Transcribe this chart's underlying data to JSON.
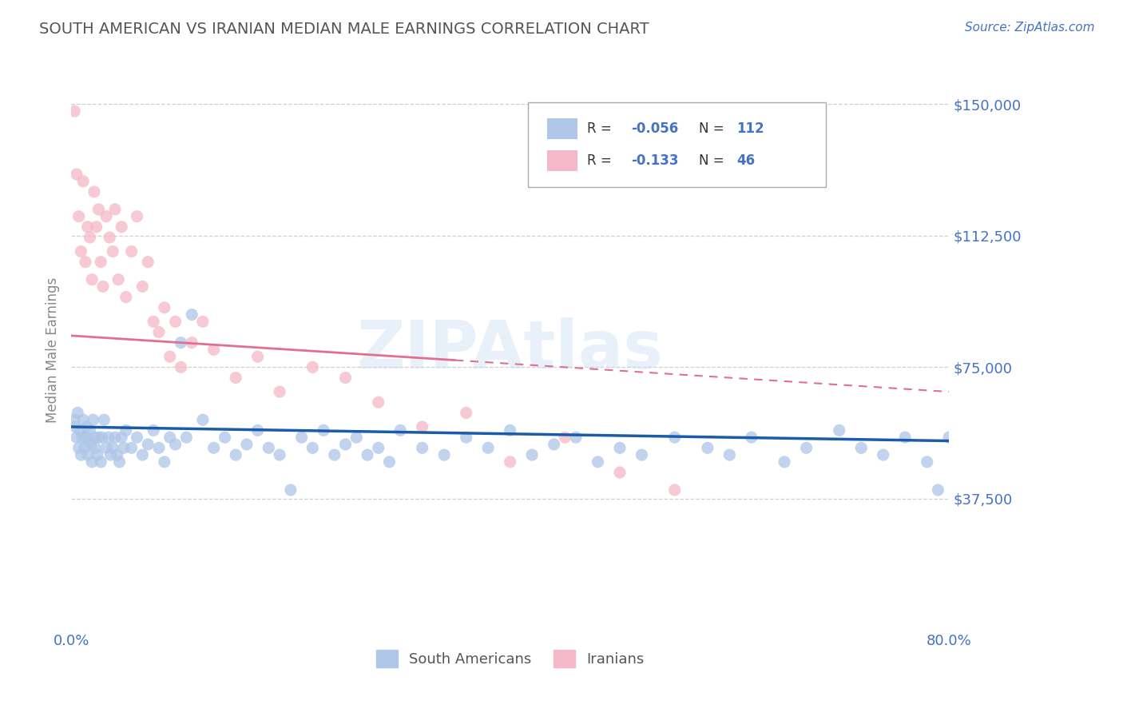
{
  "title": "SOUTH AMERICAN VS IRANIAN MEDIAN MALE EARNINGS CORRELATION CHART",
  "source_text": "Source: ZipAtlas.com",
  "ylabel": "Median Male Earnings",
  "xlim": [
    0.0,
    0.8
  ],
  "ylim": [
    0,
    160000
  ],
  "yticks": [
    37500,
    75000,
    112500,
    150000
  ],
  "ytick_labels": [
    "$37,500",
    "$75,000",
    "$112,500",
    "$150,000"
  ],
  "title_color": "#555555",
  "title_fontsize": 14,
  "source_color": "#4472c4",
  "axis_label_color": "#888888",
  "tick_label_color": "#4472c4",
  "background_color": "#ffffff",
  "grid_color": "#d0d0d0",
  "south_american_color": "#aec6e8",
  "iranian_color": "#f5b8c8",
  "trend_sa_color": "#1a5ca8",
  "trend_ir_color": "#e07090",
  "sa_trend_x0": 0.0,
  "sa_trend_x1": 0.8,
  "sa_trend_y0": 58000,
  "sa_trend_y1": 54000,
  "ir_trend_x0": 0.0,
  "ir_trend_x1": 0.8,
  "ir_trend_y0": 84000,
  "ir_trend_y1": 68000,
  "sa_x": [
    0.003,
    0.004,
    0.005,
    0.006,
    0.007,
    0.008,
    0.009,
    0.01,
    0.011,
    0.012,
    0.013,
    0.014,
    0.015,
    0.016,
    0.017,
    0.018,
    0.019,
    0.02,
    0.021,
    0.022,
    0.024,
    0.025,
    0.027,
    0.028,
    0.03,
    0.032,
    0.034,
    0.036,
    0.038,
    0.04,
    0.042,
    0.044,
    0.046,
    0.048,
    0.05,
    0.055,
    0.06,
    0.065,
    0.07,
    0.075,
    0.08,
    0.085,
    0.09,
    0.095,
    0.1,
    0.105,
    0.11,
    0.12,
    0.13,
    0.14,
    0.15,
    0.16,
    0.17,
    0.18,
    0.19,
    0.2,
    0.21,
    0.22,
    0.23,
    0.24,
    0.25,
    0.26,
    0.27,
    0.28,
    0.29,
    0.3,
    0.32,
    0.34,
    0.36,
    0.38,
    0.4,
    0.42,
    0.44,
    0.46,
    0.48,
    0.5,
    0.52,
    0.55,
    0.58,
    0.6,
    0.62,
    0.65,
    0.67,
    0.7,
    0.72,
    0.74,
    0.76,
    0.78,
    0.79,
    0.8
  ],
  "sa_y": [
    60000,
    58000,
    55000,
    62000,
    52000,
    57000,
    50000,
    55000,
    60000,
    52000,
    55000,
    58000,
    50000,
    54000,
    57000,
    53000,
    48000,
    60000,
    55000,
    52000,
    50000,
    55000,
    48000,
    55000,
    60000,
    52000,
    55000,
    50000,
    52000,
    55000,
    50000,
    48000,
    55000,
    52000,
    57000,
    52000,
    55000,
    50000,
    53000,
    57000,
    52000,
    48000,
    55000,
    53000,
    82000,
    55000,
    90000,
    60000,
    52000,
    55000,
    50000,
    53000,
    57000,
    52000,
    50000,
    40000,
    55000,
    52000,
    57000,
    50000,
    53000,
    55000,
    50000,
    52000,
    48000,
    57000,
    52000,
    50000,
    55000,
    52000,
    57000,
    50000,
    53000,
    55000,
    48000,
    52000,
    50000,
    55000,
    52000,
    50000,
    55000,
    48000,
    52000,
    57000,
    52000,
    50000,
    55000,
    48000,
    40000,
    55000
  ],
  "ir_x": [
    0.003,
    0.005,
    0.007,
    0.009,
    0.011,
    0.013,
    0.015,
    0.017,
    0.019,
    0.021,
    0.023,
    0.025,
    0.027,
    0.029,
    0.032,
    0.035,
    0.038,
    0.04,
    0.043,
    0.046,
    0.05,
    0.055,
    0.06,
    0.065,
    0.07,
    0.075,
    0.08,
    0.085,
    0.09,
    0.095,
    0.1,
    0.11,
    0.12,
    0.13,
    0.15,
    0.17,
    0.19,
    0.22,
    0.25,
    0.28,
    0.32,
    0.36,
    0.4,
    0.45,
    0.5,
    0.55
  ],
  "ir_y": [
    148000,
    130000,
    118000,
    108000,
    128000,
    105000,
    115000,
    112000,
    100000,
    125000,
    115000,
    120000,
    105000,
    98000,
    118000,
    112000,
    108000,
    120000,
    100000,
    115000,
    95000,
    108000,
    118000,
    98000,
    105000,
    88000,
    85000,
    92000,
    78000,
    88000,
    75000,
    82000,
    88000,
    80000,
    72000,
    78000,
    68000,
    75000,
    72000,
    65000,
    58000,
    62000,
    48000,
    55000,
    45000,
    40000
  ]
}
